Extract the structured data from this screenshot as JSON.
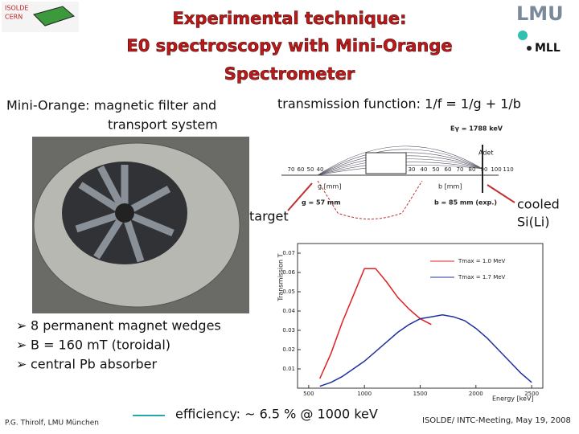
{
  "header": {
    "title_lines": [
      "Experimental technique:",
      "E0 spectroscopy with Mini-Orange",
      "Spectrometer"
    ],
    "logo_left": [
      "ISOLDE",
      "CERN"
    ],
    "logo_right": [
      "LMU",
      "MLL"
    ]
  },
  "left": {
    "caption_lines": [
      "Mini-Orange: magnetic filter and",
      "transport system"
    ],
    "bullets": [
      "8 permanent magnet wedges",
      "B = 160 mT (toroidal)",
      "central Pb absorber"
    ]
  },
  "right": {
    "caption": "transmission function:  1/f = 1/g + 1/b",
    "target": "target",
    "detector_lines": [
      "cooled",
      "Si(Li)"
    ]
  },
  "diagram": {
    "energy": "Eγ = 1788 keV",
    "detector": "Adet",
    "g_scale": [
      "70",
      "60",
      "50",
      "40"
    ],
    "b_scale": [
      "30",
      "40",
      "50",
      "60",
      "70",
      "80",
      "90",
      "100",
      "110"
    ],
    "g_axis": "g [mm]",
    "b_axis": "b [mm]",
    "g_value": "g = 57 mm",
    "b_value": "b = 85 mm (exp.)"
  },
  "chart_data": {
    "type": "line",
    "xlabel": "Energy [keV]",
    "ylabel": "Transmission T",
    "x": [
      600,
      700,
      800,
      900,
      1000,
      1100,
      1200,
      1300,
      1400,
      1500,
      1600,
      1700,
      1800,
      1900,
      2000,
      2100,
      2200,
      2300,
      2400,
      2500
    ],
    "series": [
      {
        "name": "Tmax = 1.0 MeV",
        "color": "#e02020",
        "values": [
          0.005,
          0.018,
          0.034,
          0.048,
          0.062,
          0.062,
          0.055,
          0.047,
          0.041,
          0.036,
          0.033,
          null,
          null,
          null,
          null,
          null,
          null,
          null,
          null,
          null
        ]
      },
      {
        "name": "Tmax = 1.7 MeV",
        "color": "#2030a0",
        "values": [
          0.001,
          0.003,
          0.006,
          0.01,
          0.014,
          0.019,
          0.024,
          0.029,
          0.033,
          0.036,
          0.037,
          0.038,
          0.037,
          0.035,
          0.031,
          0.026,
          0.02,
          0.014,
          0.008,
          0.003
        ]
      }
    ],
    "xlim": [
      400,
      2600
    ],
    "ylim": [
      0,
      0.075
    ],
    "xticks": [
      500,
      1000,
      1500,
      2000,
      2500
    ],
    "yticks": [
      0.01,
      0.02,
      0.03,
      0.04,
      0.05,
      0.06,
      0.07
    ]
  },
  "footer": {
    "author": "P.G. Thirolf,  LMU München",
    "efficiency": "efficiency: ~ 6.5 % @ 1000 keV",
    "meeting": "ISOLDE/ INTC-Meeting, May 19, 2008"
  }
}
